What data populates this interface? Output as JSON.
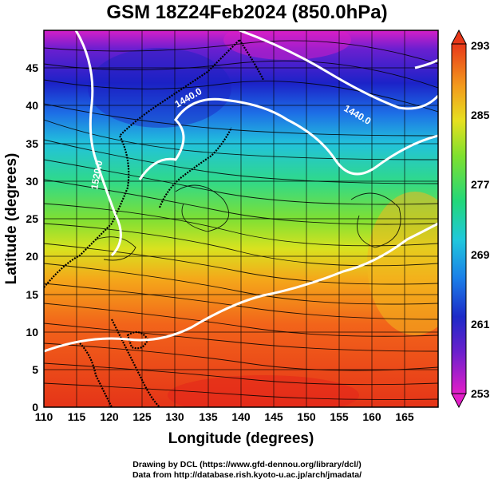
{
  "title": "GSM 18Z24Feb2024 (850.0hPa)",
  "xlabel": "Longitude (degrees)",
  "ylabel": "Latitude  (degrees)",
  "x_ticks": [
    "110",
    "115",
    "120",
    "125",
    "130",
    "135",
    "140",
    "145",
    "150",
    "155",
    "160",
    "165"
  ],
  "y_ticks": [
    "0",
    "5",
    "10",
    "15",
    "20",
    "25",
    "30",
    "35",
    "40",
    "45"
  ],
  "colorbar_labels": [
    "293",
    "285",
    "277",
    "269",
    "261",
    "253"
  ],
  "contour_labels": [
    "1440.0",
    "1440.0",
    "1520.0"
  ],
  "credits": {
    "line1": "Drawing by DCL (https://www.gfd-dennou.org/library/dcl/)",
    "line2": "Data from http://database.rish.kyoto-u.ac.jp/arch/jmadata/"
  },
  "chart_data": {
    "type": "heatmap",
    "title": "GSM 18Z24Feb2024 (850.0hPa)",
    "xlabel": "Longitude (degrees)",
    "ylabel": "Latitude  (degrees)",
    "xlim": [
      110,
      170
    ],
    "ylim": [
      0,
      50
    ],
    "colorbar_range": [
      253,
      293
    ],
    "colorbar_ticks": [
      293,
      285,
      277,
      269,
      261,
      253
    ],
    "grid": true,
    "overlays": [
      "streamlines",
      "white geopotential height contours",
      "coastlines"
    ]
  }
}
